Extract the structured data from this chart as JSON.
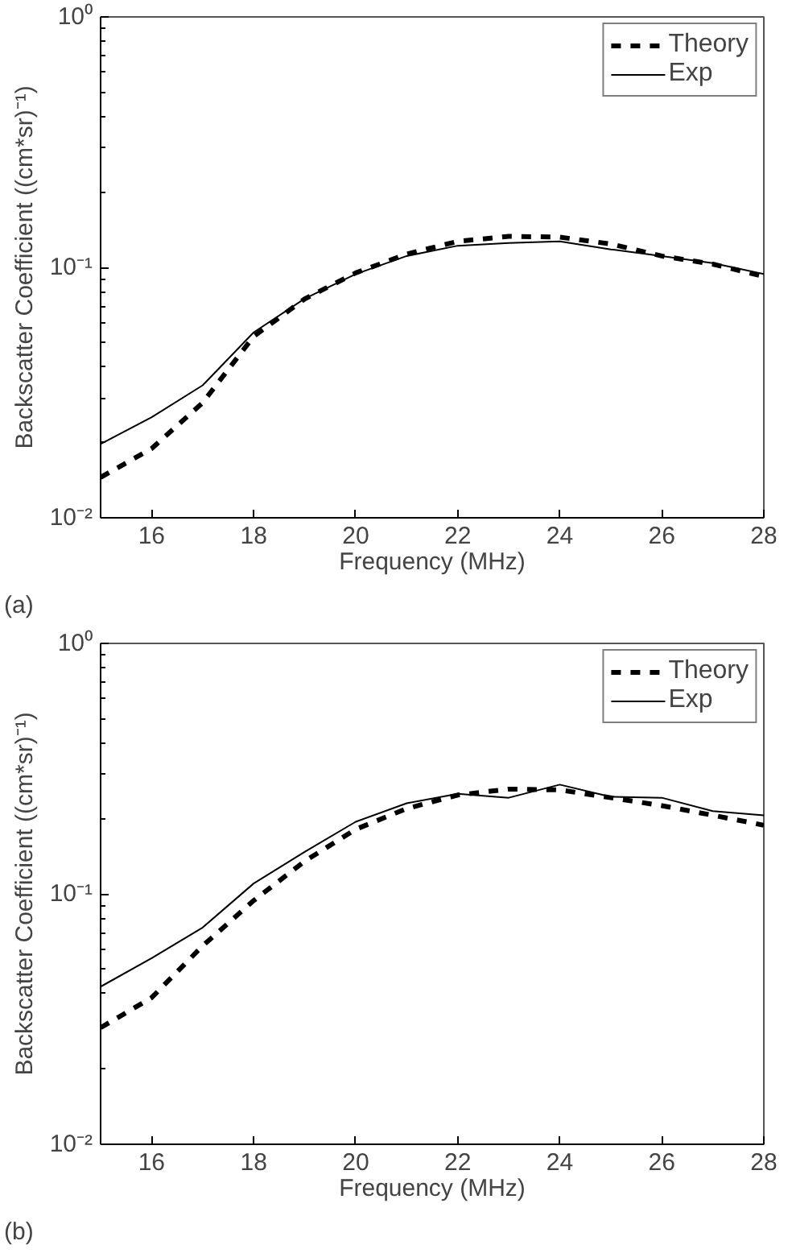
{
  "chart_data": [
    {
      "type": "line",
      "xlabel": "Frequency (MHz)",
      "ylabel": "Backscatter Coefficient ((cm*sr)⁻¹)",
      "annotations": [
        "(a)"
      ],
      "log": "y",
      "grid": false,
      "legend": "top right",
      "marker": "none",
      "x": [
        15,
        16,
        17,
        18,
        19,
        20,
        21,
        22,
        23,
        24,
        25,
        26,
        27,
        28
      ],
      "xlim": [
        15,
        28
      ],
      "xticks": [
        16,
        18,
        20,
        22,
        24,
        26,
        28
      ],
      "ylim": [
        0.01,
        1
      ],
      "yticks": [
        {
          "value": 0.01,
          "label": "10⁻²"
        },
        {
          "value": 0.1,
          "label": "10⁻¹"
        },
        {
          "value": 1,
          "label": "10⁰"
        }
      ],
      "series": [
        {
          "name": "Theory",
          "color": "#000000",
          "line_style": "dashed",
          "values": [
            0.0145,
            0.0189,
            0.0288,
            0.053,
            0.0748,
            0.095,
            0.113,
            0.127,
            0.133,
            0.132,
            0.124,
            0.111,
            0.103,
            0.092
          ]
        },
        {
          "name": "Exp",
          "color": "#000000",
          "line_style": "solid",
          "values": [
            0.0197,
            0.0252,
            0.0338,
            0.055,
            0.075,
            0.094,
            0.111,
            0.122,
            0.125,
            0.127,
            0.118,
            0.111,
            0.104,
            0.094
          ]
        }
      ]
    },
    {
      "type": "line",
      "xlabel": "Frequency (MHz)",
      "ylabel": "Backscatter Coefficient ((cm*sr)⁻¹)",
      "annotations": [
        "(b)"
      ],
      "log": "y",
      "grid": false,
      "legend": "top right",
      "marker": "none",
      "x": [
        15,
        16,
        17,
        18,
        19,
        20,
        21,
        22,
        23,
        24,
        25,
        26,
        27,
        28
      ],
      "xlim": [
        15,
        28
      ],
      "xticks": [
        16,
        18,
        20,
        22,
        24,
        26,
        28
      ],
      "ylim": [
        0.01,
        1
      ],
      "yticks": [
        {
          "value": 0.01,
          "label": "10⁻²"
        },
        {
          "value": 0.1,
          "label": "10⁻¹"
        },
        {
          "value": 1,
          "label": "10⁰"
        }
      ],
      "series": [
        {
          "name": "Theory",
          "color": "#000000",
          "line_style": "dashed",
          "values": [
            0.0292,
            0.0385,
            0.062,
            0.094,
            0.135,
            0.181,
            0.219,
            0.248,
            0.262,
            0.26,
            0.242,
            0.225,
            0.206,
            0.188
          ]
        },
        {
          "name": "Exp",
          "color": "#000000",
          "line_style": "solid",
          "values": [
            0.0426,
            0.0554,
            0.0734,
            0.11,
            0.147,
            0.194,
            0.23,
            0.251,
            0.242,
            0.273,
            0.244,
            0.242,
            0.214,
            0.206
          ]
        }
      ]
    }
  ]
}
